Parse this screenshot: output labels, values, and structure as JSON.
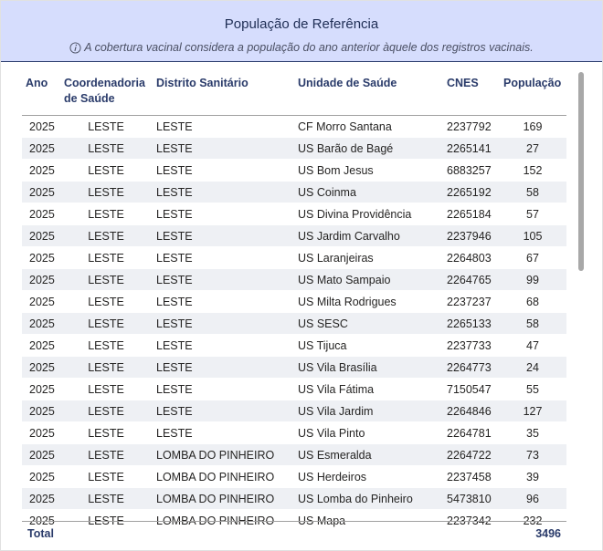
{
  "header": {
    "title": "População de Referência",
    "subtitle": "A cobertura vacinal considera a população do ano anterior àquele dos registros vacinais."
  },
  "columns": {
    "ano": "Ano",
    "coord_line1": "Coordenadoria",
    "coord_line2": "de Saúde",
    "distrito": "Distrito Sanitário",
    "unidade": "Unidade de Saúde",
    "cnes": "CNES",
    "populacao": "População"
  },
  "rows": [
    {
      "ano": "2025",
      "coord": "LESTE",
      "distrito": "LESTE",
      "unidade": "CF Morro Santana",
      "cnes": "2237792",
      "pop": "169"
    },
    {
      "ano": "2025",
      "coord": "LESTE",
      "distrito": "LESTE",
      "unidade": "US Barão de Bagé",
      "cnes": "2265141",
      "pop": "27"
    },
    {
      "ano": "2025",
      "coord": "LESTE",
      "distrito": "LESTE",
      "unidade": "US Bom Jesus",
      "cnes": "6883257",
      "pop": "152"
    },
    {
      "ano": "2025",
      "coord": "LESTE",
      "distrito": "LESTE",
      "unidade": "US Coinma",
      "cnes": "2265192",
      "pop": "58"
    },
    {
      "ano": "2025",
      "coord": "LESTE",
      "distrito": "LESTE",
      "unidade": "US Divina Providência",
      "cnes": "2265184",
      "pop": "57"
    },
    {
      "ano": "2025",
      "coord": "LESTE",
      "distrito": "LESTE",
      "unidade": "US Jardim Carvalho",
      "cnes": "2237946",
      "pop": "105"
    },
    {
      "ano": "2025",
      "coord": "LESTE",
      "distrito": "LESTE",
      "unidade": "US Laranjeiras",
      "cnes": "2264803",
      "pop": "67"
    },
    {
      "ano": "2025",
      "coord": "LESTE",
      "distrito": "LESTE",
      "unidade": "US Mato Sampaio",
      "cnes": "2264765",
      "pop": "99"
    },
    {
      "ano": "2025",
      "coord": "LESTE",
      "distrito": "LESTE",
      "unidade": "US Milta Rodrigues",
      "cnes": "2237237",
      "pop": "68"
    },
    {
      "ano": "2025",
      "coord": "LESTE",
      "distrito": "LESTE",
      "unidade": "US SESC",
      "cnes": "2265133",
      "pop": "58"
    },
    {
      "ano": "2025",
      "coord": "LESTE",
      "distrito": "LESTE",
      "unidade": "US Tijuca",
      "cnes": "2237733",
      "pop": "47"
    },
    {
      "ano": "2025",
      "coord": "LESTE",
      "distrito": "LESTE",
      "unidade": "US Vila Brasília",
      "cnes": "2264773",
      "pop": "24"
    },
    {
      "ano": "2025",
      "coord": "LESTE",
      "distrito": "LESTE",
      "unidade": "US Vila Fátima",
      "cnes": "7150547",
      "pop": "55"
    },
    {
      "ano": "2025",
      "coord": "LESTE",
      "distrito": "LESTE",
      "unidade": "US Vila Jardim",
      "cnes": "2264846",
      "pop": "127"
    },
    {
      "ano": "2025",
      "coord": "LESTE",
      "distrito": "LESTE",
      "unidade": "US Vila Pinto",
      "cnes": "2264781",
      "pop": "35"
    },
    {
      "ano": "2025",
      "coord": "LESTE",
      "distrito": "LOMBA DO PINHEIRO",
      "unidade": "US Esmeralda",
      "cnes": "2264722",
      "pop": "73"
    },
    {
      "ano": "2025",
      "coord": "LESTE",
      "distrito": "LOMBA DO PINHEIRO",
      "unidade": "US Herdeiros",
      "cnes": "2237458",
      "pop": "39"
    },
    {
      "ano": "2025",
      "coord": "LESTE",
      "distrito": "LOMBA DO PINHEIRO",
      "unidade": "US Lomba do Pinheiro",
      "cnes": "5473810",
      "pop": "96"
    },
    {
      "ano": "2025",
      "coord": "LESTE",
      "distrito": "LOMBA DO PINHEIRO",
      "unidade": "US Mapa",
      "cnes": "2237342",
      "pop": "232"
    }
  ],
  "total": {
    "label": "Total",
    "value": "3496"
  },
  "icons": {
    "info": "info-circle-icon"
  }
}
